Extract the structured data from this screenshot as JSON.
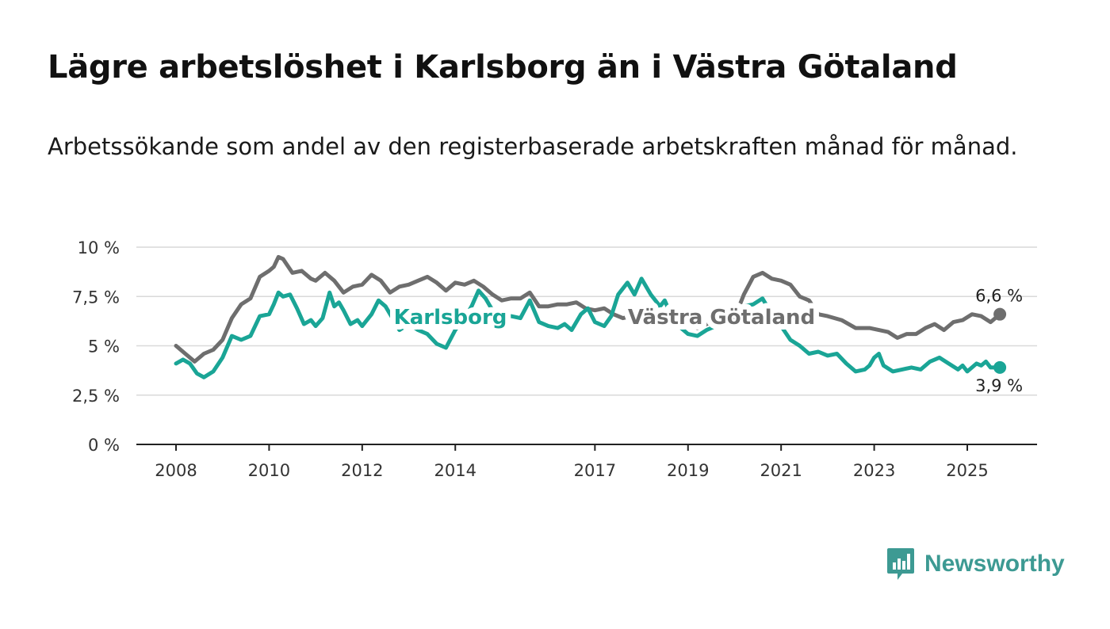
{
  "title": "Lägre arbetslöshet i Karlsborg än i Västra Götaland",
  "subtitle": "Arbetssökande som andel av den registerbaserade arbetskraften månad för månad.",
  "brand": {
    "name": "Newsworthy",
    "color": "#3d9a93"
  },
  "chart_data": {
    "type": "line",
    "ylim": [
      0,
      10
    ],
    "yticks": [
      {
        "value": 0,
        "label": "0 %"
      },
      {
        "value": 2.5,
        "label": "2,5 %"
      },
      {
        "value": 5,
        "label": "5 %"
      },
      {
        "value": 7.5,
        "label": "7,5 %"
      },
      {
        "value": 10,
        "label": "10 %"
      }
    ],
    "xlim": [
      2007.1,
      2026.4
    ],
    "xticks": [
      {
        "value": 2008,
        "label": "2008"
      },
      {
        "value": 2010,
        "label": "2010"
      },
      {
        "value": 2012,
        "label": "2012"
      },
      {
        "value": 2014,
        "label": "2014"
      },
      {
        "value": 2017,
        "label": "2017"
      },
      {
        "value": 2019,
        "label": "2019"
      },
      {
        "value": 2021,
        "label": "2021"
      },
      {
        "value": 2023,
        "label": "2023"
      },
      {
        "value": 2025,
        "label": "2025"
      }
    ],
    "grid": true,
    "series": [
      {
        "name": "Västra Götaland",
        "color": "#6e6e6e",
        "end_label": "6,6 %",
        "points": [
          [
            2008.0,
            5.0
          ],
          [
            2008.2,
            4.6
          ],
          [
            2008.4,
            4.2
          ],
          [
            2008.6,
            4.6
          ],
          [
            2008.8,
            4.8
          ],
          [
            2009.0,
            5.3
          ],
          [
            2009.2,
            6.4
          ],
          [
            2009.4,
            7.1
          ],
          [
            2009.6,
            7.4
          ],
          [
            2009.8,
            8.5
          ],
          [
            2010.0,
            8.8
          ],
          [
            2010.1,
            9.0
          ],
          [
            2010.2,
            9.5
          ],
          [
            2010.3,
            9.4
          ],
          [
            2010.5,
            8.7
          ],
          [
            2010.7,
            8.8
          ],
          [
            2010.9,
            8.4
          ],
          [
            2011.0,
            8.3
          ],
          [
            2011.2,
            8.7
          ],
          [
            2011.4,
            8.3
          ],
          [
            2011.6,
            7.7
          ],
          [
            2011.8,
            8.0
          ],
          [
            2012.0,
            8.1
          ],
          [
            2012.2,
            8.6
          ],
          [
            2012.4,
            8.3
          ],
          [
            2012.6,
            7.7
          ],
          [
            2012.8,
            8.0
          ],
          [
            2013.0,
            8.1
          ],
          [
            2013.2,
            8.3
          ],
          [
            2013.4,
            8.5
          ],
          [
            2013.6,
            8.2
          ],
          [
            2013.8,
            7.8
          ],
          [
            2014.0,
            8.2
          ],
          [
            2014.2,
            8.1
          ],
          [
            2014.4,
            8.3
          ],
          [
            2014.6,
            8.0
          ],
          [
            2014.8,
            7.6
          ],
          [
            2015.0,
            7.3
          ],
          [
            2015.2,
            7.4
          ],
          [
            2015.4,
            7.4
          ],
          [
            2015.6,
            7.7
          ],
          [
            2015.8,
            7.0
          ],
          [
            2016.0,
            7.0
          ],
          [
            2016.2,
            7.1
          ],
          [
            2016.4,
            7.1
          ],
          [
            2016.6,
            7.2
          ],
          [
            2016.8,
            6.9
          ],
          [
            2017.0,
            6.8
          ],
          [
            2017.2,
            6.9
          ],
          [
            2017.4,
            6.6
          ],
          [
            2017.6,
            6.4
          ],
          [
            2017.8,
            6.5
          ],
          [
            2018.0,
            6.3
          ],
          [
            2018.3,
            6.1
          ],
          [
            2018.6,
            6.0
          ],
          [
            2018.9,
            6.2
          ],
          [
            2019.2,
            5.9
          ],
          [
            2019.5,
            6.2
          ],
          [
            2019.8,
            6.5
          ],
          [
            2020.0,
            6.4
          ],
          [
            2020.2,
            7.6
          ],
          [
            2020.4,
            8.5
          ],
          [
            2020.6,
            8.7
          ],
          [
            2020.8,
            8.4
          ],
          [
            2021.0,
            8.3
          ],
          [
            2021.2,
            8.1
          ],
          [
            2021.4,
            7.5
          ],
          [
            2021.6,
            7.3
          ],
          [
            2021.8,
            6.6
          ],
          [
            2022.0,
            6.5
          ],
          [
            2022.3,
            6.3
          ],
          [
            2022.6,
            5.9
          ],
          [
            2022.9,
            5.9
          ],
          [
            2023.1,
            5.8
          ],
          [
            2023.3,
            5.7
          ],
          [
            2023.5,
            5.4
          ],
          [
            2023.7,
            5.6
          ],
          [
            2023.9,
            5.6
          ],
          [
            2024.1,
            5.9
          ],
          [
            2024.3,
            6.1
          ],
          [
            2024.5,
            5.8
          ],
          [
            2024.7,
            6.2
          ],
          [
            2024.9,
            6.3
          ],
          [
            2025.1,
            6.6
          ],
          [
            2025.3,
            6.5
          ],
          [
            2025.5,
            6.2
          ],
          [
            2025.7,
            6.6
          ]
        ]
      },
      {
        "name": "Karlsborg",
        "color": "#1aa596",
        "end_label": "3,9 %",
        "points": [
          [
            2008.0,
            4.1
          ],
          [
            2008.15,
            4.3
          ],
          [
            2008.3,
            4.1
          ],
          [
            2008.45,
            3.6
          ],
          [
            2008.6,
            3.4
          ],
          [
            2008.8,
            3.7
          ],
          [
            2009.0,
            4.4
          ],
          [
            2009.2,
            5.5
          ],
          [
            2009.4,
            5.3
          ],
          [
            2009.6,
            5.5
          ],
          [
            2009.8,
            6.5
          ],
          [
            2010.0,
            6.6
          ],
          [
            2010.1,
            7.1
          ],
          [
            2010.2,
            7.7
          ],
          [
            2010.3,
            7.5
          ],
          [
            2010.45,
            7.6
          ],
          [
            2010.6,
            6.9
          ],
          [
            2010.75,
            6.1
          ],
          [
            2010.9,
            6.3
          ],
          [
            2011.0,
            6.0
          ],
          [
            2011.15,
            6.4
          ],
          [
            2011.3,
            7.7
          ],
          [
            2011.4,
            7.0
          ],
          [
            2011.5,
            7.2
          ],
          [
            2011.6,
            6.8
          ],
          [
            2011.75,
            6.1
          ],
          [
            2011.9,
            6.3
          ],
          [
            2012.0,
            6.0
          ],
          [
            2012.2,
            6.6
          ],
          [
            2012.35,
            7.3
          ],
          [
            2012.5,
            7.0
          ],
          [
            2012.65,
            6.4
          ],
          [
            2012.8,
            5.8
          ],
          [
            2013.0,
            6.1
          ],
          [
            2013.2,
            5.8
          ],
          [
            2013.4,
            5.6
          ],
          [
            2013.6,
            5.1
          ],
          [
            2013.8,
            4.9
          ],
          [
            2014.0,
            5.8
          ],
          [
            2014.2,
            6.4
          ],
          [
            2014.35,
            7.0
          ],
          [
            2014.5,
            7.8
          ],
          [
            2014.65,
            7.4
          ],
          [
            2014.8,
            6.8
          ],
          [
            2015.0,
            6.4
          ],
          [
            2015.2,
            6.5
          ],
          [
            2015.4,
            6.4
          ],
          [
            2015.6,
            7.3
          ],
          [
            2015.8,
            6.2
          ],
          [
            2016.0,
            6.0
          ],
          [
            2016.2,
            5.9
          ],
          [
            2016.35,
            6.1
          ],
          [
            2016.5,
            5.8
          ],
          [
            2016.7,
            6.6
          ],
          [
            2016.85,
            6.9
          ],
          [
            2017.0,
            6.2
          ],
          [
            2017.2,
            6.0
          ],
          [
            2017.35,
            6.5
          ],
          [
            2017.5,
            7.6
          ],
          [
            2017.7,
            8.2
          ],
          [
            2017.85,
            7.6
          ],
          [
            2018.0,
            8.4
          ],
          [
            2018.2,
            7.6
          ],
          [
            2018.4,
            7.0
          ],
          [
            2018.5,
            7.3
          ],
          [
            2018.7,
            6.2
          ],
          [
            2019.0,
            5.6
          ],
          [
            2019.2,
            5.5
          ],
          [
            2019.4,
            5.8
          ],
          [
            2019.6,
            6.0
          ],
          [
            2019.8,
            6.2
          ],
          [
            2020.0,
            6.8
          ],
          [
            2020.2,
            7.0
          ],
          [
            2020.4,
            7.1
          ],
          [
            2020.6,
            7.4
          ],
          [
            2020.8,
            6.6
          ],
          [
            2021.0,
            6.0
          ],
          [
            2021.2,
            5.3
          ],
          [
            2021.4,
            5.0
          ],
          [
            2021.6,
            4.6
          ],
          [
            2021.8,
            4.7
          ],
          [
            2022.0,
            4.5
          ],
          [
            2022.2,
            4.6
          ],
          [
            2022.4,
            4.1
          ],
          [
            2022.6,
            3.7
          ],
          [
            2022.8,
            3.8
          ],
          [
            2022.9,
            4.0
          ],
          [
            2023.0,
            4.4
          ],
          [
            2023.1,
            4.6
          ],
          [
            2023.2,
            4.0
          ],
          [
            2023.4,
            3.7
          ],
          [
            2023.6,
            3.8
          ],
          [
            2023.8,
            3.9
          ],
          [
            2024.0,
            3.8
          ],
          [
            2024.2,
            4.2
          ],
          [
            2024.4,
            4.4
          ],
          [
            2024.6,
            4.1
          ],
          [
            2024.8,
            3.8
          ],
          [
            2024.9,
            4.0
          ],
          [
            2025.0,
            3.7
          ],
          [
            2025.2,
            4.1
          ],
          [
            2025.3,
            4.0
          ],
          [
            2025.4,
            4.2
          ],
          [
            2025.5,
            3.9
          ],
          [
            2025.7,
            3.9
          ]
        ]
      }
    ]
  }
}
